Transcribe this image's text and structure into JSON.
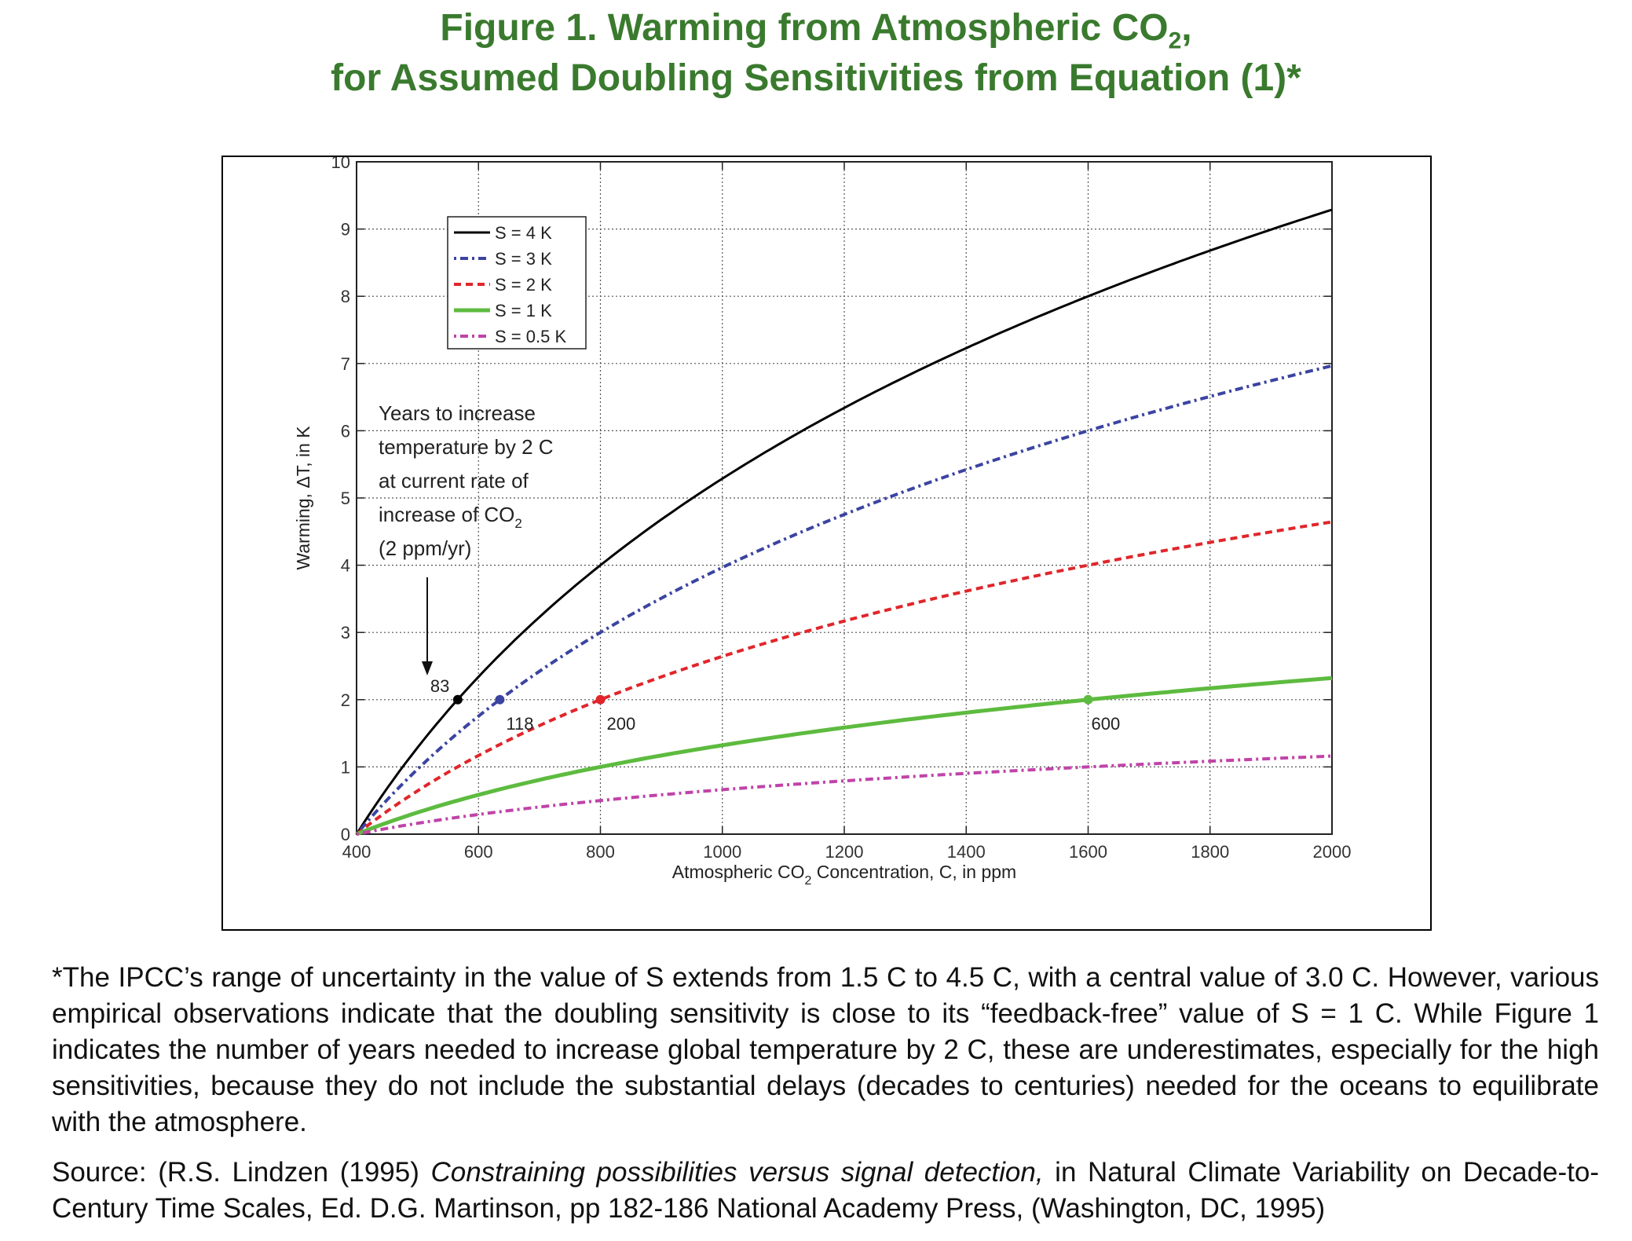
{
  "title": {
    "line1": "Figure 1. Warming from Atmospheric CO",
    "line1_sub": "2",
    "line1_end": ",",
    "line2": "for Assumed Doubling Sensitivities from Equation (1)*"
  },
  "colors": {
    "title": "#3a7a2e",
    "s4": "#000000",
    "s3": "#3b44a0",
    "s2": "#e0262b",
    "s1": "#5dbb3f",
    "s05": "#c043a8"
  },
  "chart_data": {
    "type": "line",
    "xlabel": "Atmospheric CO",
    "xlabel_sub": "2",
    "xlabel_end": " Concentration, C, in ppm",
    "ylabel": "Warming, ΔT, in K",
    "xlim": [
      400,
      2000
    ],
    "ylim": [
      0,
      10
    ],
    "xticks": [
      "400",
      "600",
      "800",
      "1000",
      "1200",
      "1400",
      "1600",
      "1800",
      "2000"
    ],
    "yticks": [
      "0",
      "1",
      "2",
      "3",
      "4",
      "5",
      "6",
      "7",
      "8",
      "9",
      "10"
    ],
    "grid": true,
    "legend_position": "top-left",
    "series": [
      {
        "name": "S = 4 K",
        "sensitivity": 4,
        "style": "solid",
        "x": [
          400,
          500,
          600,
          800,
          1000,
          1200,
          1400,
          1600,
          1800,
          2000
        ],
        "values": [
          0,
          1.29,
          2.34,
          4.0,
          5.29,
          6.34,
          7.23,
          8.0,
          8.68,
          9.29
        ]
      },
      {
        "name": "S = 3 K",
        "sensitivity": 3,
        "style": "dash-dot",
        "x": [
          400,
          500,
          600,
          800,
          1000,
          1200,
          1400,
          1600,
          1800,
          2000
        ],
        "values": [
          0,
          0.97,
          1.75,
          3.0,
          3.97,
          4.75,
          5.42,
          6.0,
          6.51,
          6.97
        ]
      },
      {
        "name": "S = 2 K",
        "sensitivity": 2,
        "style": "dashed",
        "x": [
          400,
          500,
          600,
          800,
          1000,
          1200,
          1400,
          1600,
          1800,
          2000
        ],
        "values": [
          0,
          0.64,
          1.17,
          2.0,
          2.64,
          3.17,
          3.61,
          4.0,
          4.34,
          4.64
        ]
      },
      {
        "name": "S = 1 K",
        "sensitivity": 1,
        "style": "solid",
        "x": [
          400,
          500,
          600,
          800,
          1000,
          1200,
          1400,
          1600,
          1800,
          2000
        ],
        "values": [
          0,
          0.32,
          0.58,
          1.0,
          1.32,
          1.58,
          1.81,
          2.0,
          2.17,
          2.32
        ]
      },
      {
        "name": "S = 0.5 K",
        "sensitivity": 0.5,
        "style": "dash-dot",
        "x": [
          400,
          500,
          600,
          800,
          1000,
          1200,
          1400,
          1600,
          1800,
          2000
        ],
        "values": [
          0,
          0.16,
          0.29,
          0.5,
          0.66,
          0.79,
          0.9,
          1.0,
          1.08,
          1.16
        ]
      }
    ],
    "markers": [
      {
        "series": "S = 4 K",
        "x": 566,
        "y": 2,
        "label": "83"
      },
      {
        "series": "S = 3 K",
        "x": 635,
        "y": 2,
        "label": "118"
      },
      {
        "series": "S = 2 K",
        "x": 800,
        "y": 2,
        "label": "200"
      },
      {
        "series": "S = 1 K",
        "x": 1600,
        "y": 2,
        "label": "600"
      }
    ],
    "annotation": {
      "lines": [
        "Years to increase",
        "temperature by 2 C",
        "at current rate of",
        "increase of CO",
        "(2 ppm/yr)"
      ],
      "sub": "2"
    }
  },
  "caption": {
    "p1": "*The IPCC’s range of uncertainty in the value of S extends from 1.5 C to 4.5 C, with a central value of 3.0 C. However, various empirical observations indicate that the doubling sensitivity is close to its “feedback-free” value of S = 1 C. While Figure 1 indicates the number of years needed to increase global temperature by 2 C, these are underestimates, especially for the high sensitivities, because they do not include the substantial delays (decades to centuries) needed for the oceans to equilibrate with the atmosphere.",
    "p2_prefix": "Source: (R.S. Lindzen (1995) ",
    "p2_italic": "Constraining possibilities versus signal detection,",
    "p2_suffix": " in Natural Climate Variability on Decade-to-Century Time Scales,  Ed. D.G. Martinson, pp 182-186 National Academy Press, (Washington, DC, 1995)"
  }
}
